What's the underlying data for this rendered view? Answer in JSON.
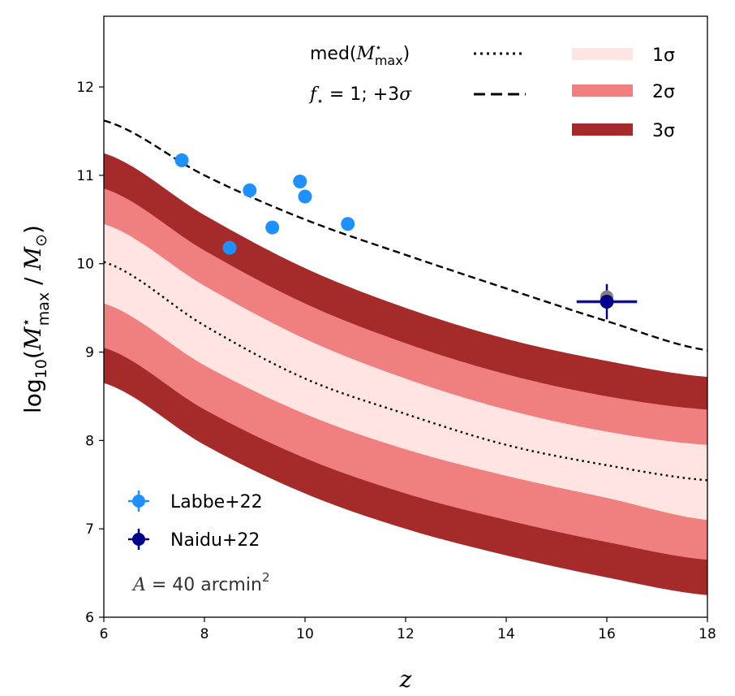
{
  "chart_data": {
    "type": "area",
    "xlabel": "z",
    "ylabel": "log10(M*max / M⊙)",
    "xlim": [
      6,
      18
    ],
    "ylim": [
      6,
      12.8
    ],
    "xticks": [
      6,
      8,
      10,
      12,
      14,
      16,
      18
    ],
    "yticks": [
      6,
      7,
      8,
      9,
      10,
      11,
      12
    ],
    "grid": false,
    "bands": {
      "x": [
        6,
        8,
        10,
        12,
        14,
        16,
        18
      ],
      "sigma3": {
        "name": "3σ",
        "color": "#a52a2a",
        "lower": [
          8.65,
          7.95,
          7.4,
          7.0,
          6.7,
          6.45,
          6.25
        ],
        "upper": [
          11.25,
          10.55,
          9.95,
          9.5,
          9.15,
          8.9,
          8.72
        ]
      },
      "sigma2": {
        "name": "2σ",
        "color": "#f08080",
        "lower": [
          9.05,
          8.35,
          7.8,
          7.4,
          7.1,
          6.85,
          6.65
        ],
        "upper": [
          10.85,
          10.15,
          9.55,
          9.1,
          8.75,
          8.5,
          8.35
        ]
      },
      "sigma1": {
        "name": "1σ",
        "color": "#ffe4e1",
        "lower": [
          9.55,
          8.85,
          8.3,
          7.9,
          7.6,
          7.35,
          7.1
        ],
        "upper": [
          10.45,
          9.75,
          9.15,
          8.7,
          8.35,
          8.1,
          7.95
        ]
      }
    },
    "series": [
      {
        "name": "med(M*max)",
        "style": "dotted",
        "x": [
          6,
          8,
          10,
          12,
          14,
          16,
          18
        ],
        "values": [
          10.02,
          9.3,
          8.7,
          8.3,
          7.95,
          7.72,
          7.55
        ]
      },
      {
        "name": "f* = 1; +3σ",
        "style": "dashed",
        "x": [
          6,
          8,
          10,
          12,
          14,
          16,
          18
        ],
        "values": [
          11.62,
          11.0,
          10.5,
          10.1,
          9.72,
          9.35,
          9.02
        ]
      }
    ],
    "points": [
      {
        "name": "Labbe+22",
        "color": "#1e90ff",
        "x": [
          7.55,
          8.5,
          8.9,
          9.35,
          9.9,
          10.0,
          10.85
        ],
        "y": [
          11.17,
          10.18,
          10.83,
          10.41,
          10.93,
          10.76,
          10.45
        ]
      },
      {
        "name": "Naidu+22",
        "color": "#00008b",
        "x": [
          16.0
        ],
        "y": [
          9.57
        ],
        "xerr": [
          0.6
        ],
        "yerr": [
          0.2
        ]
      }
    ],
    "legend_top": {
      "med_label": "med(",
      "med_sym": "M",
      "med_sup": "⋆",
      "med_sub": "max",
      "med_close": ")",
      "f_label_sym": "f",
      "f_label_sub": "⋆",
      "f_label_rest": " = 1; +3",
      "f_label_sigma": "σ",
      "s1": "1σ",
      "s2": "2σ",
      "s3": "3σ"
    },
    "legend_bottom": {
      "labbe": "Labbe+22",
      "naidu": "Naidu+22"
    },
    "annotation": {
      "sym": "A",
      "rest": " = 40 arcmin",
      "sup": "2"
    },
    "ylabel_parts": {
      "log": "log",
      "base": "10",
      "open": "(",
      "M": "M",
      "star": "⋆",
      "max": "max",
      "slash": " / ",
      "M2": "M",
      "sun": "⊙",
      "close": ")"
    }
  }
}
